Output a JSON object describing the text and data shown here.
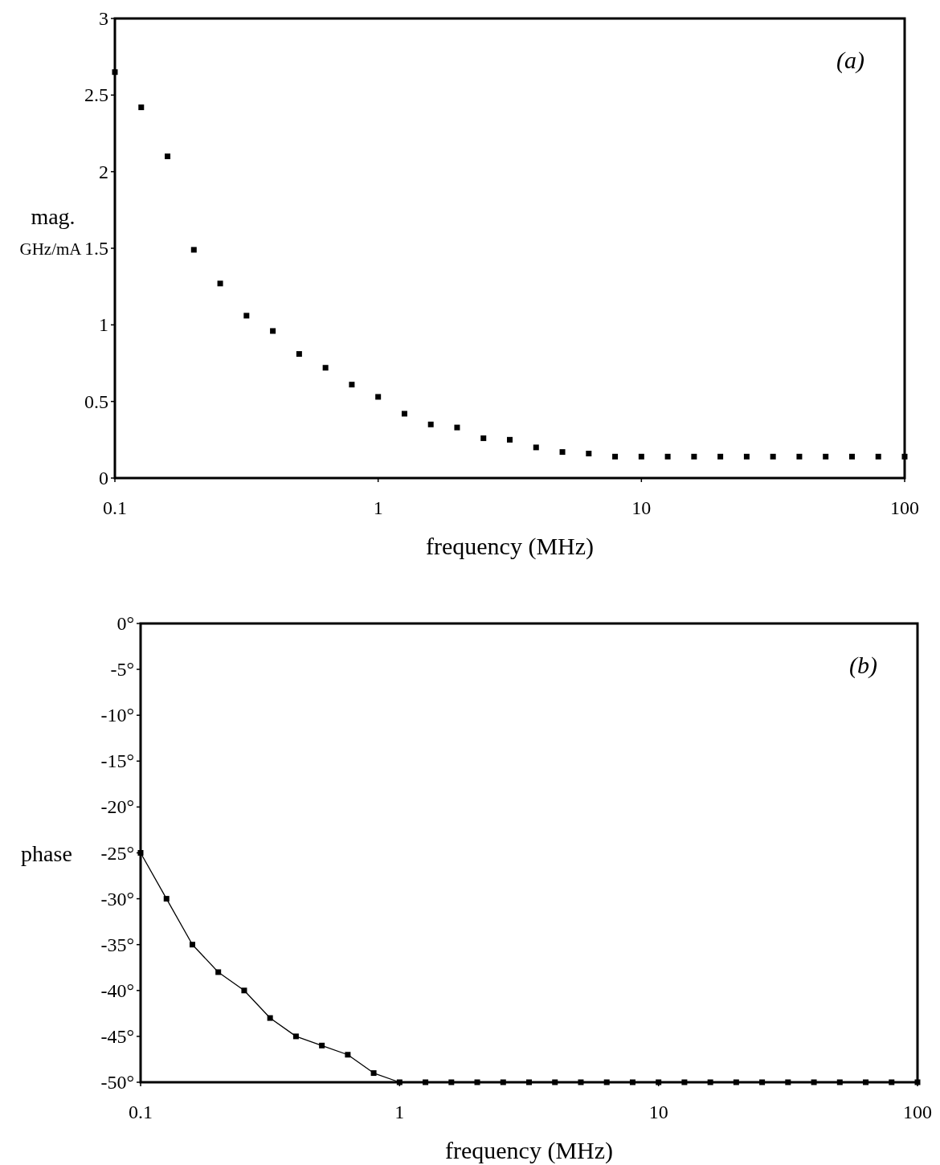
{
  "chart_data": [
    {
      "type": "scatter",
      "xlabel": "frequency (MHz)",
      "ylabel": "mag. GHz/mA",
      "annotations": [
        "(a)"
      ],
      "log": "x",
      "marker": "square",
      "grid": false,
      "x": [
        0.1,
        0.1259,
        0.1585,
        0.1995,
        0.2512,
        0.3162,
        0.3981,
        0.5012,
        0.631,
        0.7943,
        1,
        1.259,
        1.585,
        1.995,
        2.512,
        3.162,
        3.981,
        5.012,
        6.31,
        7.943,
        10,
        12.59,
        15.85,
        19.95,
        25.12,
        31.62,
        39.81,
        50.12,
        63.1,
        79.43,
        100
      ],
      "series": [
        {
          "color": "#000000",
          "values": [
            2.65,
            2.42,
            2.1,
            1.49,
            1.27,
            1.06,
            0.96,
            0.81,
            0.72,
            0.61,
            0.53,
            0.42,
            0.35,
            0.33,
            0.26,
            0.25,
            0.2,
            0.17,
            0.16,
            0.14,
            0.14,
            0.14,
            0.14,
            0.14,
            0.14,
            0.14,
            0.14,
            0.14,
            0.14,
            0.14,
            0.14
          ]
        }
      ],
      "xlim": [
        0.1,
        100
      ],
      "xticks": [
        0.1,
        1,
        10,
        100
      ],
      "ylim": [
        0,
        3
      ],
      "yticks": [
        0,
        0.5,
        1,
        1.5,
        2,
        2.5,
        3
      ]
    },
    {
      "type": "line",
      "xlabel": "frequency (MHz)",
      "ylabel": "phase",
      "annotations": [
        "(b)"
      ],
      "log": "x",
      "marker": "square",
      "line_style": "solid",
      "grid": false,
      "x": [
        0.1,
        0.1259,
        0.1585,
        0.1995,
        0.2512,
        0.3162,
        0.3981,
        0.5012,
        0.631,
        0.7943,
        1,
        1.259,
        1.585,
        1.995,
        2.512,
        3.162,
        3.981,
        5.012,
        6.31,
        7.943,
        10,
        12.59,
        15.85,
        19.95,
        25.12,
        31.62,
        39.81,
        50.12,
        63.1,
        79.43,
        100
      ],
      "series": [
        {
          "color": "#000000",
          "values": [
            -25,
            -30,
            -35,
            -38,
            -40,
            -43,
            -45,
            -46,
            -47,
            -49,
            -50,
            -50,
            -50,
            -50,
            -50,
            -50,
            -50,
            -50,
            -50,
            -50,
            -50,
            -50,
            -50,
            -50,
            -50,
            -50,
            -50,
            -50,
            -50,
            -50,
            -50
          ]
        }
      ],
      "xlim": [
        0.1,
        100
      ],
      "xticks": [
        0.1,
        1,
        10,
        100
      ],
      "ylim": [
        -50,
        0
      ],
      "yticks": [
        {
          "value": 0,
          "label": "0°"
        },
        {
          "value": -5,
          "label": "-5°"
        },
        {
          "value": -10,
          "label": "-10°"
        },
        {
          "value": -15,
          "label": "-15°"
        },
        {
          "value": -20,
          "label": "-20°"
        },
        {
          "value": -25,
          "label": "-25°"
        },
        {
          "value": -30,
          "label": "-30°"
        },
        {
          "value": -35,
          "label": "-35°"
        },
        {
          "value": -40,
          "label": "-40°"
        },
        {
          "value": -45,
          "label": "-45°"
        },
        {
          "value": -50,
          "label": "-50°"
        }
      ]
    }
  ]
}
